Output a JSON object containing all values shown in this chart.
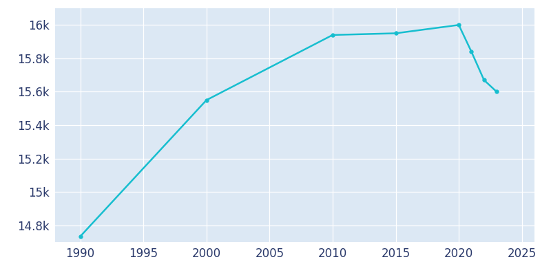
{
  "years": [
    1990,
    2000,
    2010,
    2015,
    2020,
    2021,
    2022,
    2023
  ],
  "population": [
    14734,
    15550,
    15940,
    15950,
    16000,
    15840,
    15670,
    15600
  ],
  "line_color": "#17becf",
  "marker_color": "#17becf",
  "fig_bg_color": "#ffffff",
  "axis_bg_color": "#dce8f4",
  "text_color": "#2b3a6b",
  "xlim": [
    1988,
    2026
  ],
  "ylim": [
    14700,
    16100
  ],
  "yticks": [
    14800,
    15000,
    15200,
    15400,
    15600,
    15800,
    16000
  ],
  "xticks": [
    1990,
    1995,
    2000,
    2005,
    2010,
    2015,
    2020,
    2025
  ],
  "tick_label_fontsize": 12,
  "line_width": 1.8,
  "marker_size": 4
}
